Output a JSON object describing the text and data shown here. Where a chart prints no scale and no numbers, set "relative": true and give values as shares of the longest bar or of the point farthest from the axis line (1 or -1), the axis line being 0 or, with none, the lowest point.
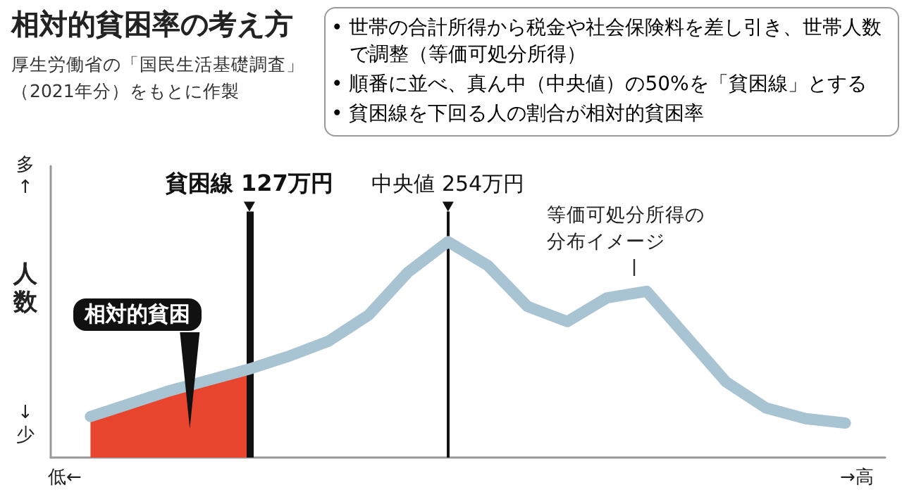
{
  "chart_data": {
    "type": "line",
    "title": "相対的貧困率の考え方",
    "subtitle": "厚生労働省の「国民生活基礎調査」（2021年分）をもとに作製",
    "ylabel": "人数",
    "relative": true,
    "categories": [
      null,
      null,
      null,
      null,
      null,
      "貧困線 127万円",
      null,
      null,
      null,
      null,
      "中央値 254万円",
      null,
      null,
      null,
      null,
      null,
      null,
      null,
      null,
      null,
      null,
      null
    ],
    "tick_labels": "x",
    "grid": false,
    "series": [
      {
        "color": "#a8c3d1",
        "values": [
          null,
          0.19,
          0.25,
          0.31,
          0.36,
          0.41,
          0.47,
          0.54,
          0.66,
          0.86,
          1,
          0.89,
          0.7,
          0.63,
          0.74,
          0.77,
          0.56,
          0.35,
          0.23,
          0.18,
          0.16,
          null
        ]
      },
      {
        "type": "area",
        "name": "相対的貧困",
        "color": "#e8452f",
        "values": [
          null,
          0.19,
          0.25,
          0.31,
          0.36,
          0.41,
          null,
          null,
          null,
          null,
          null,
          null,
          null,
          null,
          null,
          null,
          null,
          null,
          null,
          null,
          null,
          null
        ]
      }
    ],
    "ref_lines": [
      {
        "axis": "x",
        "value": "貧困線 127万円",
        "color": "#111111"
      },
      {
        "axis": "x",
        "value": "中央値 254万円",
        "color": "#111111"
      }
    ],
    "annotations": [
      "• 世帯の合計所得から税金や社会保険料を差し引き、世帯人数で調整（等価可処分所得）",
      "• 順番に並べ、真ん中（中央値）の50%を「貧困線」とする",
      "• 貧困線を下回る人の割合が相対的貧困率",
      "多↑",
      "↓少",
      "低←",
      "→高",
      "等価可処分所得の分布イメージ"
    ]
  }
}
